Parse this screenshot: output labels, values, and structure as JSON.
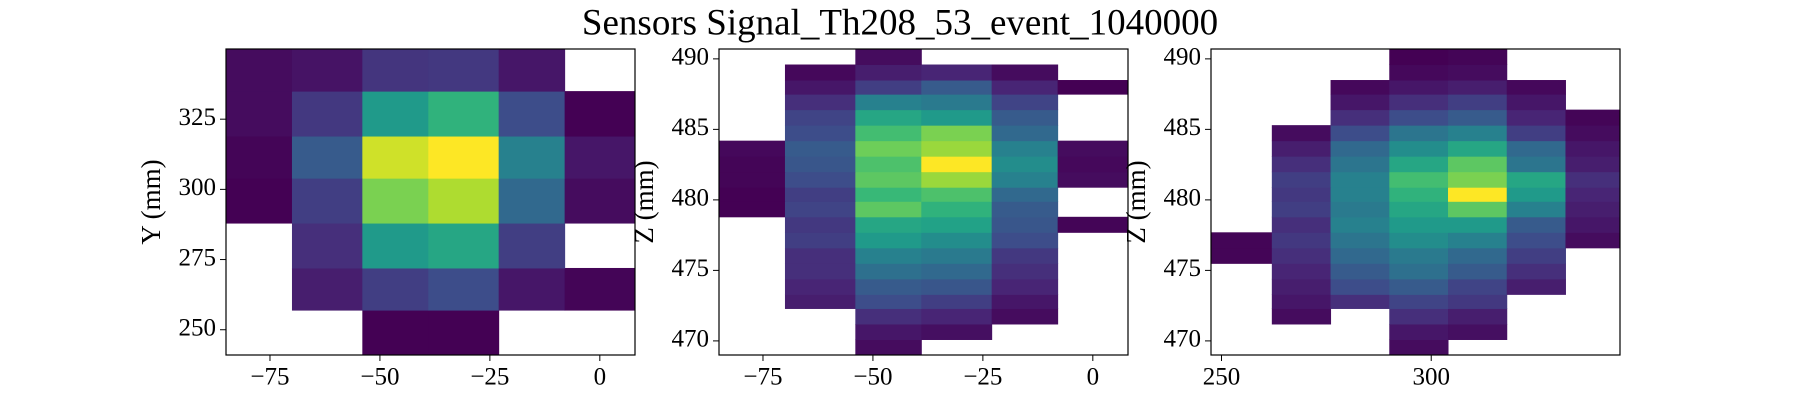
{
  "title": "Sensors Signal_Th208_53_event_1040000",
  "chart_data": [
    {
      "type": "heatmap",
      "ylabel": "Y (mm)",
      "colormap": "viridis",
      "x_bins": [
        -85,
        -70,
        -54,
        -39,
        -23,
        -8,
        8
      ],
      "y_bins": [
        241,
        257,
        272,
        288,
        304,
        319,
        335,
        350
      ],
      "xlim": [
        -85,
        8
      ],
      "ylim": [
        241,
        350
      ],
      "xticks": [
        {
          "value": -75,
          "label": "−75"
        },
        {
          "value": -50,
          "label": "−50"
        },
        {
          "value": -25,
          "label": "−25"
        },
        0
      ],
      "yticks": [
        250,
        275,
        300,
        325
      ],
      "values": [
        [
          null,
          null,
          0.02,
          0.02,
          null,
          null
        ],
        [
          null,
          0.1,
          0.2,
          0.25,
          0.08,
          0.03
        ],
        [
          null,
          0.15,
          0.55,
          0.6,
          0.2,
          null
        ],
        [
          0.02,
          0.2,
          0.8,
          0.88,
          0.35,
          0.05
        ],
        [
          0.03,
          0.3,
          0.93,
          1.0,
          0.45,
          0.08
        ],
        [
          0.05,
          0.18,
          0.55,
          0.65,
          0.25,
          0.02
        ],
        [
          0.05,
          0.07,
          0.17,
          0.18,
          0.08,
          null
        ]
      ]
    },
    {
      "type": "heatmap",
      "ylabel": "Z (mm)",
      "colormap": "viridis",
      "x_bins": [
        -85,
        -70,
        -54,
        -39,
        -23,
        -8,
        8
      ],
      "y_bins": [
        469,
        470.1,
        471.2,
        472.3,
        473.3,
        474.4,
        475.5,
        476.6,
        477.7,
        478.8,
        479.9,
        480.9,
        482,
        483.1,
        484.2,
        485.3,
        486.4,
        487.5,
        488.5,
        489.6,
        490.7
      ],
      "xlim": [
        -85,
        8
      ],
      "ylim": [
        469,
        490.7
      ],
      "xticks": [
        {
          "value": -75,
          "label": "−75"
        },
        {
          "value": -50,
          "label": "−50"
        },
        {
          "value": -25,
          "label": "−25"
        },
        0
      ],
      "yticks": [
        470,
        475,
        480,
        485,
        490
      ],
      "values": [
        [
          null,
          null,
          0.05,
          null,
          null,
          null
        ],
        [
          null,
          null,
          0.08,
          0.06,
          null,
          null
        ],
        [
          null,
          null,
          0.15,
          0.12,
          0.05,
          null
        ],
        [
          null,
          0.1,
          0.25,
          0.2,
          0.08,
          null
        ],
        [
          null,
          0.12,
          0.3,
          0.28,
          0.12,
          null
        ],
        [
          null,
          0.15,
          0.38,
          0.35,
          0.15,
          null
        ],
        [
          null,
          0.15,
          0.45,
          0.42,
          0.18,
          null
        ],
        [
          null,
          0.2,
          0.55,
          0.5,
          0.25,
          null
        ],
        [
          null,
          0.18,
          0.6,
          0.58,
          0.28,
          0.03
        ],
        [
          0.02,
          0.22,
          0.75,
          0.65,
          0.3,
          null
        ],
        [
          0.02,
          0.2,
          0.68,
          0.72,
          0.35,
          null
        ],
        [
          0.03,
          0.25,
          0.75,
          0.85,
          0.45,
          0.05
        ],
        [
          0.03,
          0.28,
          0.72,
          1.0,
          0.5,
          0.04
        ],
        [
          0.04,
          0.3,
          0.78,
          0.85,
          0.45,
          0.05
        ],
        [
          null,
          0.25,
          0.7,
          0.8,
          0.35,
          null
        ],
        [
          null,
          0.22,
          0.6,
          0.55,
          0.3,
          null
        ],
        [
          null,
          0.15,
          0.45,
          0.42,
          0.22,
          null
        ],
        [
          null,
          0.08,
          0.2,
          0.3,
          0.12,
          0.02
        ],
        [
          null,
          0.04,
          0.1,
          0.12,
          0.05,
          null
        ],
        [
          null,
          null,
          0.05,
          null,
          null,
          null
        ]
      ]
    },
    {
      "type": "heatmap",
      "ylabel": "Z (mm)",
      "colormap": "viridis",
      "x_bins": [
        247.5,
        262,
        276,
        290,
        304,
        318,
        332,
        345
      ],
      "y_bins": [
        469,
        470.1,
        471.2,
        472.3,
        473.3,
        474.4,
        475.5,
        476.6,
        477.7,
        478.8,
        479.9,
        480.9,
        482,
        483.1,
        484.2,
        485.3,
        486.4,
        487.5,
        488.5,
        489.6,
        490.7
      ],
      "xlim": [
        247.5,
        345
      ],
      "ylim": [
        469,
        490.7
      ],
      "xticks": [
        250,
        300
      ],
      "yticks": [
        470,
        475,
        480,
        485,
        490
      ],
      "values": [
        [
          null,
          null,
          null,
          0.05,
          null,
          null,
          null
        ],
        [
          null,
          null,
          null,
          0.08,
          0.06,
          null,
          null
        ],
        [
          null,
          0.05,
          null,
          0.15,
          0.1,
          null,
          null
        ],
        [
          null,
          0.08,
          0.15,
          0.22,
          0.18,
          null,
          null
        ],
        [
          null,
          0.1,
          0.25,
          0.3,
          0.22,
          0.1,
          null
        ],
        [
          null,
          0.12,
          0.3,
          0.38,
          0.3,
          0.15,
          null
        ],
        [
          0.03,
          0.15,
          0.35,
          0.42,
          0.35,
          0.2,
          null
        ],
        [
          0.03,
          0.18,
          0.4,
          0.5,
          0.45,
          0.25,
          0.05
        ],
        [
          null,
          0.15,
          0.45,
          0.55,
          0.55,
          0.3,
          0.08
        ],
        [
          null,
          0.2,
          0.42,
          0.6,
          0.75,
          0.45,
          0.1
        ],
        [
          null,
          0.18,
          0.45,
          0.65,
          1.0,
          0.55,
          0.12
        ],
        [
          null,
          0.2,
          0.45,
          0.7,
          0.8,
          0.6,
          0.15
        ],
        [
          null,
          0.15,
          0.4,
          0.6,
          0.75,
          0.4,
          0.1
        ],
        [
          null,
          0.1,
          0.35,
          0.5,
          0.6,
          0.35,
          0.08
        ],
        [
          null,
          0.05,
          0.25,
          0.4,
          0.45,
          0.2,
          0.05
        ],
        [
          null,
          null,
          0.15,
          0.25,
          0.3,
          0.12,
          0.03
        ],
        [
          null,
          null,
          0.08,
          0.15,
          0.2,
          0.08,
          null
        ],
        [
          null,
          null,
          0.04,
          0.08,
          0.1,
          0.04,
          null
        ],
        [
          null,
          null,
          null,
          0.04,
          0.05,
          null,
          null
        ],
        [
          null,
          null,
          null,
          0.02,
          0.03,
          null,
          null
        ]
      ]
    }
  ]
}
